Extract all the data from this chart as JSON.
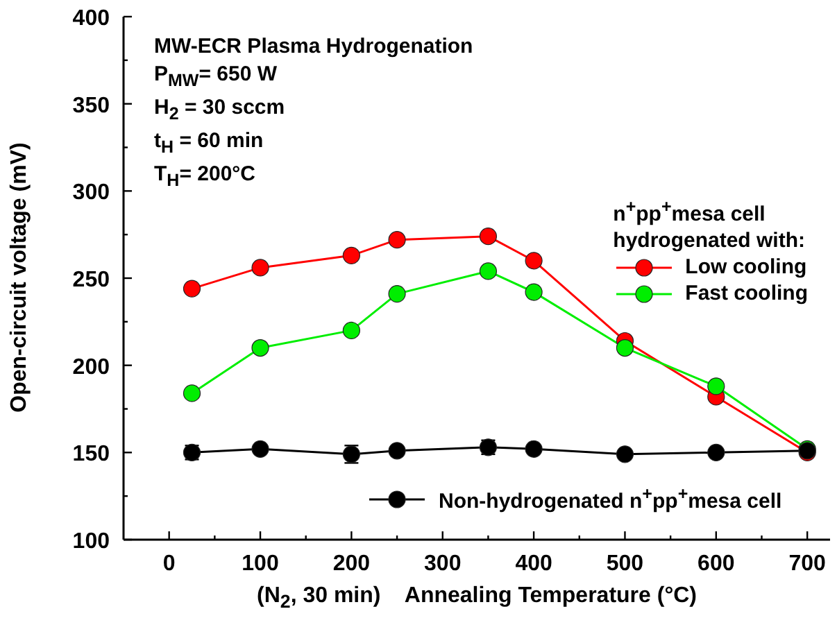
{
  "chart_data": {
    "type": "line",
    "xlabel": "(N$_{2}$, 30 min)    Annealing Temperature (°C)",
    "ylabel": "Open-circuit voltage (mV)",
    "legend_title": "n$^{+}$pp$^{+}$mesa cell\nhydrogenated with:",
    "annotations": [
      "MW-ECR Plasma Hydrogenation",
      "P$_{MW}$= 650 W",
      "H$_{2}$ = 30 sccm",
      "t$_{H}$ = 60 min",
      "T$_{H}$= 200°C"
    ],
    "x": [
      25,
      100,
      200,
      250,
      350,
      400,
      500,
      600,
      700
    ],
    "series": [
      {
        "name": "Low cooling",
        "color": "#ff0000",
        "values": [
          244,
          256,
          263,
          272,
          274,
          260,
          214,
          182,
          150
        ]
      },
      {
        "name": "Fast cooling",
        "color": "#00ee00",
        "values": [
          184,
          210,
          220,
          241,
          254,
          242,
          210,
          188,
          152
        ]
      },
      {
        "name": "Non-hydrogenated n$^{+}$pp$^{+}$mesa cell",
        "color": "#000000",
        "values": [
          150,
          152,
          149,
          151,
          153,
          152,
          149,
          150,
          151
        ],
        "errors": [
          4,
          2,
          5,
          2,
          4,
          2,
          2,
          2,
          2
        ]
      }
    ],
    "xlim": [
      -50,
      725
    ],
    "xticks": [
      0,
      {
        "value": 50,
        "label": null
      },
      100,
      {
        "value": 150,
        "label": null
      },
      200,
      {
        "value": 250,
        "label": null
      },
      300,
      {
        "value": 350,
        "label": null
      },
      400,
      {
        "value": 450,
        "label": null
      },
      500,
      {
        "value": 550,
        "label": null
      },
      600,
      {
        "value": 650,
        "label": null
      },
      700
    ],
    "ylim": [
      100,
      400
    ],
    "yticks": [
      100,
      {
        "value": 125,
        "label": null
      },
      150,
      {
        "value": 175,
        "label": null
      },
      200,
      {
        "value": 225,
        "label": null
      },
      250,
      {
        "value": 275,
        "label": null
      },
      300,
      {
        "value": 325,
        "label": null
      },
      350,
      {
        "value": 375,
        "label": null
      },
      400
    ],
    "grid": false,
    "legend": "right",
    "marker": "circle",
    "line_style": "solid"
  }
}
